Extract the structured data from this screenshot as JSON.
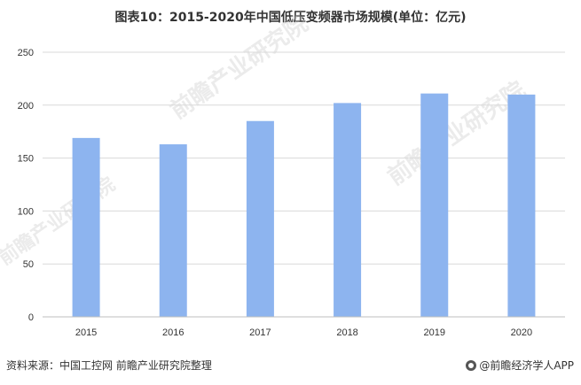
{
  "title": "图表10：2015-2020年中国低压变频器市场规模(单位：亿元)",
  "source": "资料来源：中国工控网 前瞻产业研究院整理",
  "logo_text": "@前瞻经济学人APP",
  "watermark_text": "前瞻产业研究院",
  "colors": {
    "bar": "#8db4ef",
    "grid": "#d9d9d9",
    "axis": "#bfbfbf"
  },
  "chart_data": {
    "type": "bar",
    "title": "图表10：2015-2020年中国低压变频器市场规模(单位：亿元)",
    "xlabel": "",
    "ylabel": "",
    "categories": [
      "2015",
      "2016",
      "2017",
      "2018",
      "2019",
      "2020"
    ],
    "values": [
      169,
      163,
      185,
      202,
      211,
      210
    ],
    "ylim": [
      0,
      250
    ],
    "yticks": [
      0,
      50,
      100,
      150,
      200,
      250
    ],
    "grid": true,
    "legend": "none"
  }
}
